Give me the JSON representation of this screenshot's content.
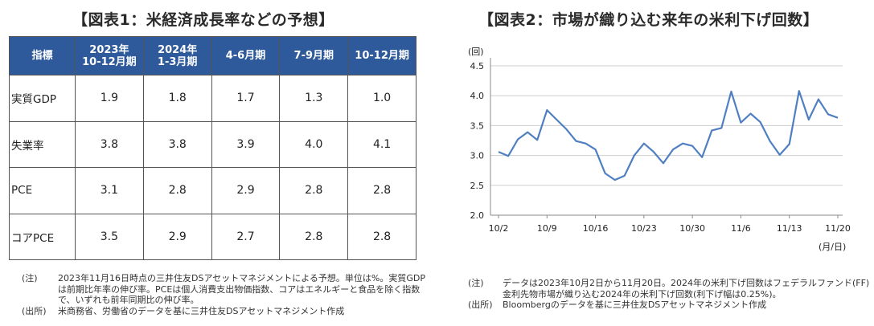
{
  "table_panel": {
    "title": "【図表1：米経済成長率などの予想】",
    "headers": {
      "indicator": "指標",
      "q1_line1": "2023年",
      "q1_line2": "10-12月期",
      "q2_line1": "2024年",
      "q2_line2": "1-3月期",
      "q3": "4-6月期",
      "q4": "7-9月期",
      "q5": "10-12月期"
    },
    "rows": [
      {
        "label": "実質GDP",
        "values": [
          "1.9",
          "1.8",
          "1.7",
          "1.3",
          "1.0"
        ]
      },
      {
        "label": "失業率",
        "values": [
          "3.8",
          "3.8",
          "3.9",
          "4.0",
          "4.1"
        ]
      },
      {
        "label": "PCE",
        "values": [
          "3.1",
          "2.8",
          "2.9",
          "2.8",
          "2.8"
        ]
      },
      {
        "label": "コアPCE",
        "values": [
          "3.5",
          "2.9",
          "2.7",
          "2.8",
          "2.8"
        ]
      }
    ],
    "note_label": "(注)",
    "note_text": "2023年11月16日時点の三井住友DSアセットマネジメントによる予想。単位は%。実質GDPは前期比年率の伸び率。PCEは個人消費支出物価指数、コアはエネルギーと食品を除く指数で、いずれも前年同期比の伸び率。",
    "source_label": "(出所)",
    "source_text": "米商務省、労働省のデータを基に三井住友DSアセットマネジメント作成"
  },
  "chart_panel": {
    "note_label": "(注)",
    "note_text": "データは2023年10月2日から11月20日。2024年の米利下げ回数はフェデラルファンド(FF)金利先物市場が織り込む2024年の米利下げ回数(利下げ幅は0.25%)。",
    "source_label": "(出所)",
    "source_text": "Bloombergのデータを基に三井住友DSアセットマネジメント作成"
  },
  "chart_data": {
    "type": "line",
    "title": "【図表2：市場が織り込む来年の米利下げ回数】",
    "ylabel": "(回)",
    "xlabel": "(月/日)",
    "ylim": [
      2.0,
      4.5
    ],
    "yticks": [
      "2.0",
      "2.5",
      "3.0",
      "3.5",
      "4.0",
      "4.5"
    ],
    "xtick_labels": [
      "10/2",
      "10/9",
      "10/16",
      "10/23",
      "10/30",
      "11/6",
      "11/13",
      "11/20"
    ],
    "grid": true,
    "color": "#4f7fc1",
    "series": [
      {
        "name": "2024年の米利下げ回数",
        "values": [
          3.06,
          2.99,
          3.27,
          3.39,
          3.26,
          3.76,
          3.6,
          3.44,
          3.24,
          3.2,
          3.1,
          2.7,
          2.59,
          2.66,
          3.0,
          3.2,
          3.06,
          2.87,
          3.1,
          3.2,
          3.16,
          2.97,
          3.42,
          3.46,
          4.07,
          3.55,
          3.7,
          3.56,
          3.24,
          3.01,
          3.19,
          4.08,
          3.6,
          3.94,
          3.69,
          3.63
        ]
      }
    ]
  }
}
